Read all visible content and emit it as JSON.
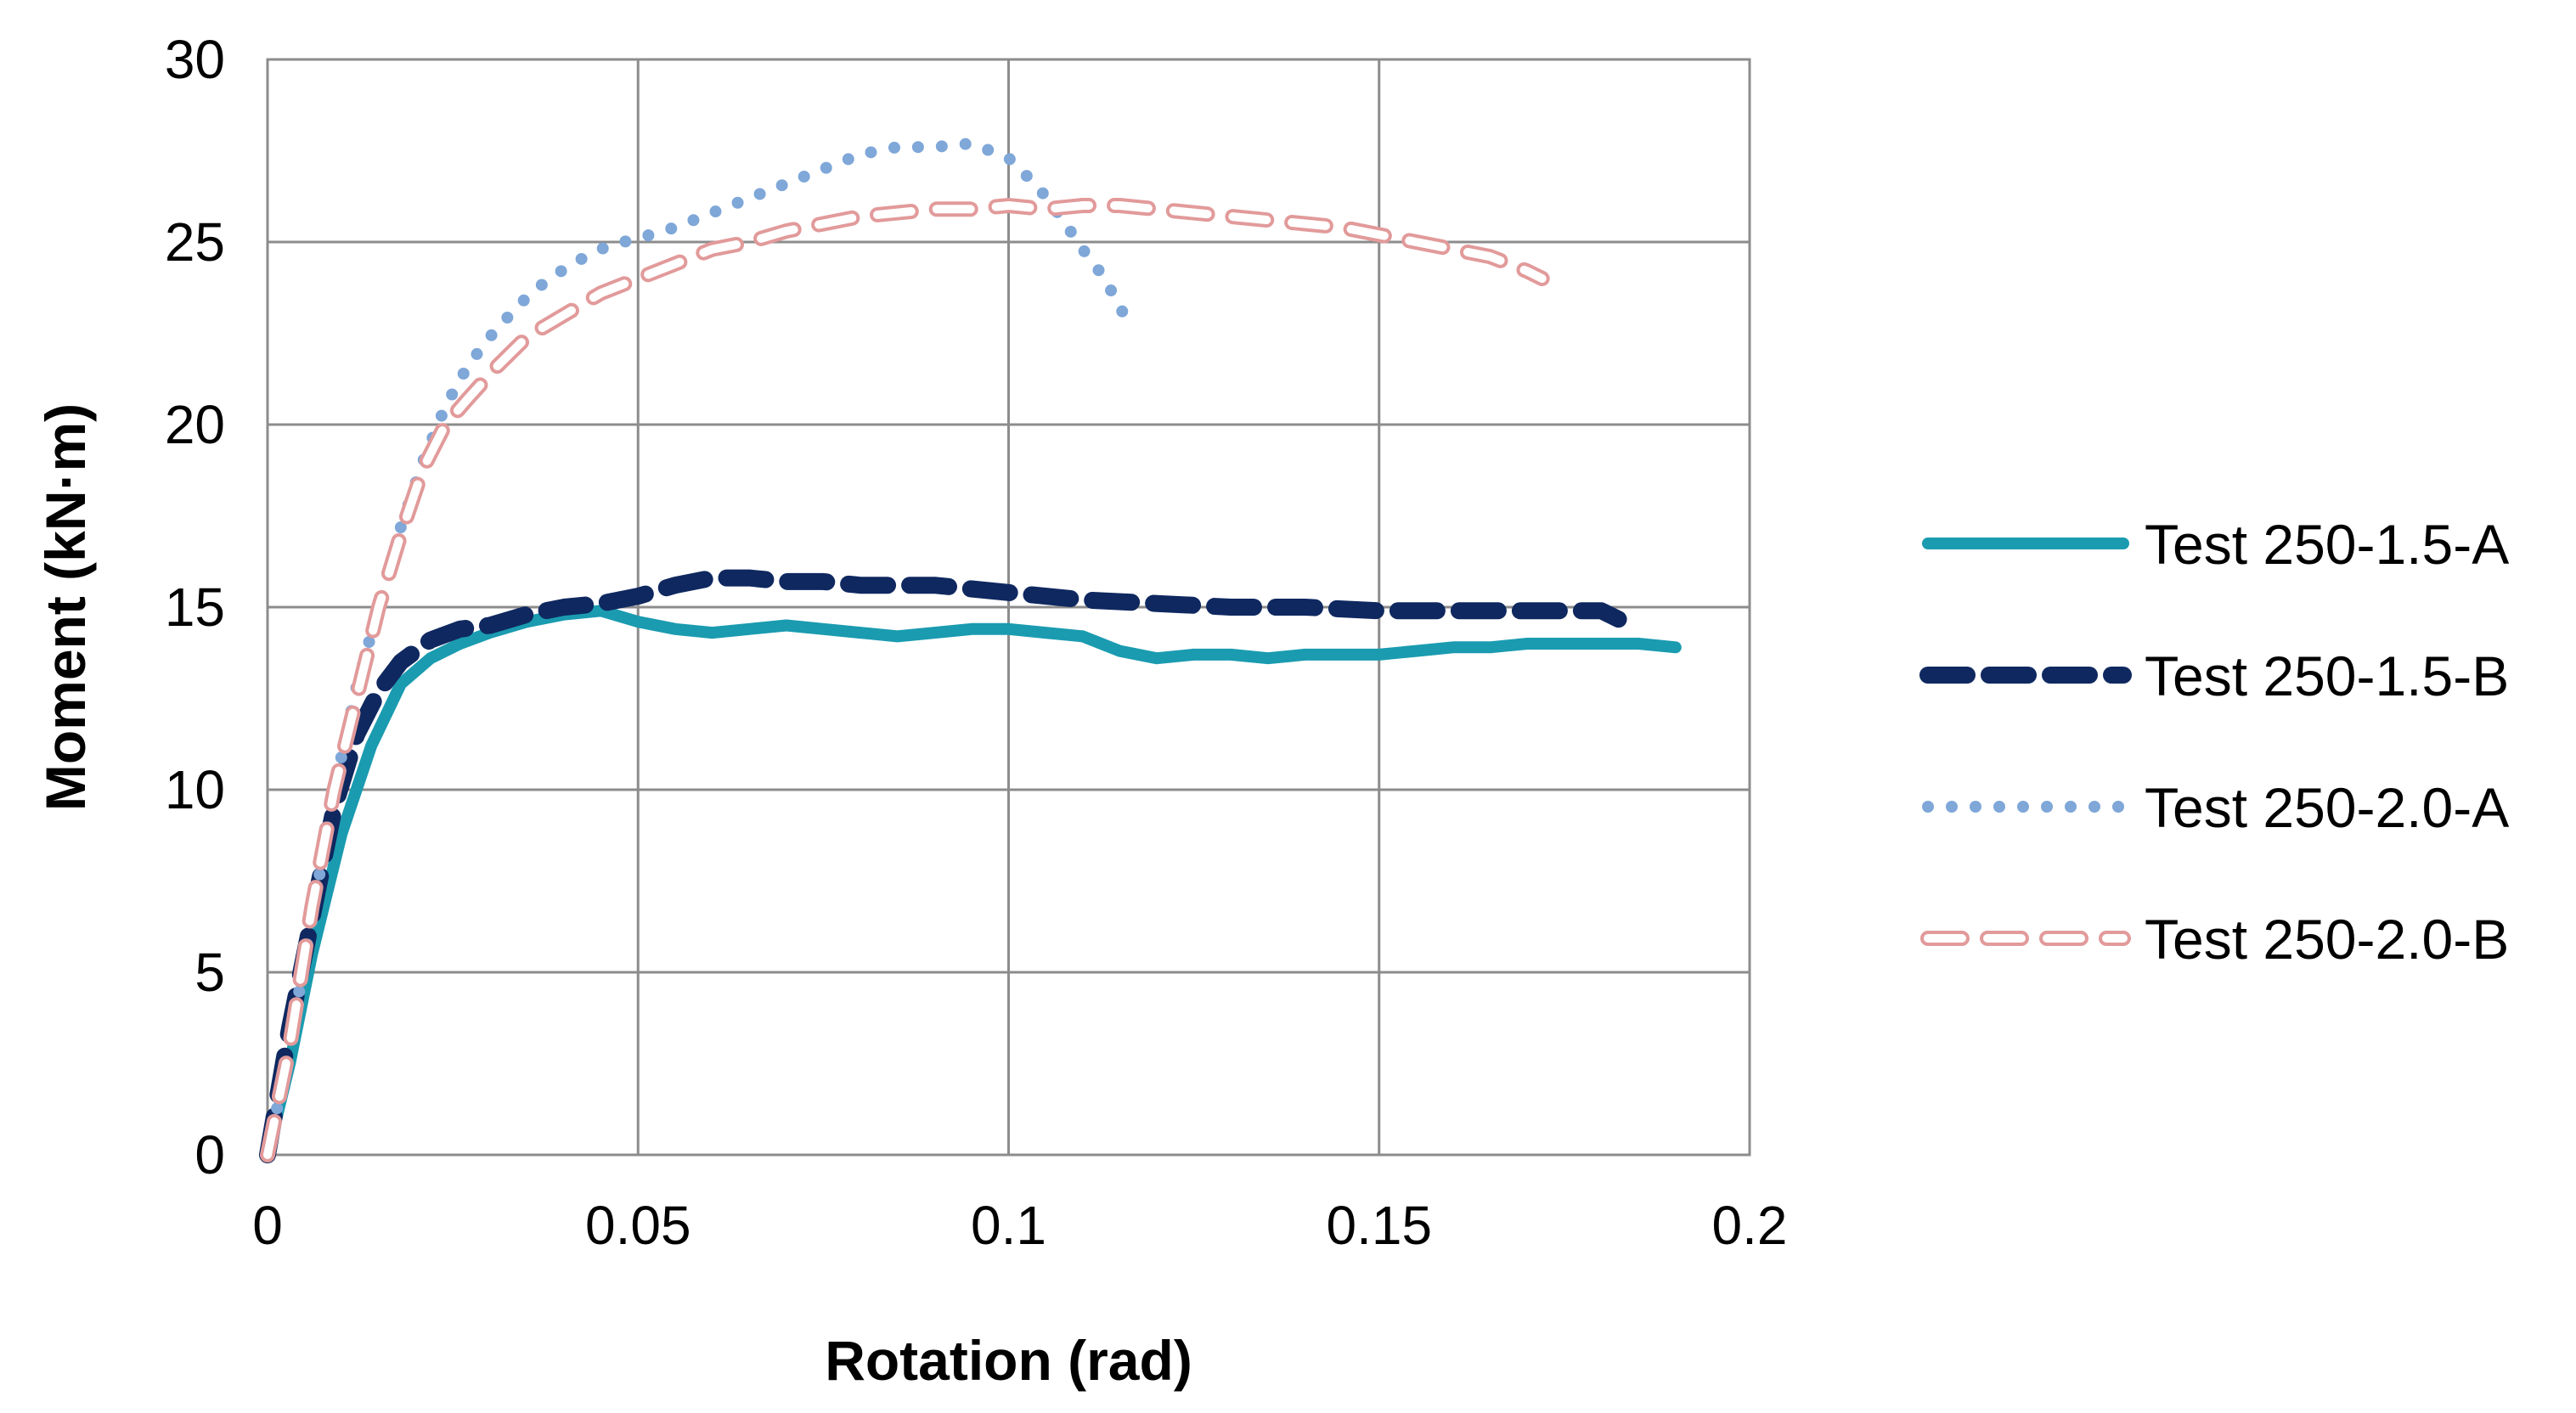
{
  "chart_data": {
    "type": "line",
    "title": "",
    "xlabel": "Rotation (rad)",
    "ylabel": "Moment (kN·m)",
    "xlim": [
      0,
      0.2
    ],
    "ylim": [
      0,
      30
    ],
    "xticks": [
      0,
      0.05,
      0.1,
      0.15,
      0.2
    ],
    "xtick_labels": [
      "0",
      "0.05",
      "0.1",
      "0.15",
      "0.2"
    ],
    "yticks": [
      0,
      5,
      10,
      15,
      20,
      25,
      30
    ],
    "ytick_labels": [
      "0",
      "5",
      "10",
      "15",
      "20",
      "25",
      "30"
    ],
    "grid": true,
    "legend_position": "right",
    "series": [
      {
        "name": "Test 250-1.5-A",
        "color": "#1a9bb0",
        "style": "solid",
        "x": [
          0,
          0.003,
          0.006,
          0.01,
          0.014,
          0.018,
          0.022,
          0.026,
          0.03,
          0.035,
          0.04,
          0.045,
          0.05,
          0.055,
          0.06,
          0.065,
          0.07,
          0.075,
          0.08,
          0.085,
          0.09,
          0.095,
          0.1,
          0.105,
          0.11,
          0.115,
          0.12,
          0.125,
          0.13,
          0.135,
          0.14,
          0.145,
          0.15,
          0.155,
          0.16,
          0.165,
          0.17,
          0.175,
          0.18,
          0.185,
          0.19
        ],
        "y": [
          0,
          2.5,
          5.5,
          8.8,
          11.2,
          12.9,
          13.6,
          14.0,
          14.3,
          14.6,
          14.8,
          14.9,
          14.6,
          14.4,
          14.3,
          14.4,
          14.5,
          14.4,
          14.3,
          14.2,
          14.3,
          14.4,
          14.4,
          14.3,
          14.2,
          13.8,
          13.6,
          13.7,
          13.7,
          13.6,
          13.7,
          13.7,
          13.7,
          13.8,
          13.9,
          13.9,
          14.0,
          14.0,
          14.0,
          14.0,
          13.9
        ]
      },
      {
        "name": "Test 250-1.5-B",
        "color": "#0f2860",
        "style": "dashed",
        "x": [
          0,
          0.003,
          0.006,
          0.009,
          0.012,
          0.015,
          0.018,
          0.022,
          0.026,
          0.03,
          0.035,
          0.04,
          0.045,
          0.05,
          0.055,
          0.06,
          0.065,
          0.07,
          0.075,
          0.08,
          0.085,
          0.09,
          0.095,
          0.1,
          0.105,
          0.11,
          0.12,
          0.13,
          0.14,
          0.15,
          0.16,
          0.17,
          0.175,
          0.18,
          0.183
        ],
        "y": [
          0,
          3.5,
          6.5,
          9.5,
          11.5,
          12.7,
          13.5,
          14.1,
          14.4,
          14.5,
          14.8,
          15.0,
          15.1,
          15.3,
          15.6,
          15.8,
          15.8,
          15.7,
          15.7,
          15.6,
          15.6,
          15.6,
          15.5,
          15.4,
          15.3,
          15.2,
          15.1,
          15.0,
          15.0,
          14.9,
          14.9,
          14.9,
          14.9,
          14.9,
          14.6
        ]
      },
      {
        "name": "Test 250-2.0-A",
        "color": "#7fa7d8",
        "style": "dotted",
        "x": [
          0,
          0.003,
          0.006,
          0.009,
          0.012,
          0.015,
          0.018,
          0.021,
          0.024,
          0.027,
          0.03,
          0.034,
          0.038,
          0.042,
          0.046,
          0.05,
          0.055,
          0.06,
          0.065,
          0.07,
          0.075,
          0.08,
          0.085,
          0.09,
          0.095,
          0.1,
          0.104,
          0.107,
          0.11,
          0.113,
          0.115,
          0.117
        ],
        "y": [
          0,
          3.0,
          6.5,
          10.0,
          12.8,
          15.0,
          17.2,
          19.0,
          20.5,
          21.6,
          22.4,
          23.3,
          24.0,
          24.5,
          24.9,
          25.1,
          25.4,
          25.8,
          26.2,
          26.6,
          27.0,
          27.4,
          27.6,
          27.6,
          27.7,
          27.3,
          26.5,
          25.7,
          24.8,
          24.0,
          23.2,
          22.6
        ]
      },
      {
        "name": "Test 250-2.0-B",
        "color": "#e29a9a",
        "style": "hollow-dash",
        "x": [
          0,
          0.003,
          0.006,
          0.009,
          0.012,
          0.015,
          0.018,
          0.021,
          0.024,
          0.027,
          0.031,
          0.035,
          0.04,
          0.045,
          0.05,
          0.055,
          0.06,
          0.065,
          0.07,
          0.075,
          0.08,
          0.085,
          0.09,
          0.095,
          0.1,
          0.105,
          0.11,
          0.115,
          0.12,
          0.125,
          0.13,
          0.135,
          0.14,
          0.145,
          0.15,
          0.155,
          0.16,
          0.165,
          0.17,
          0.172
        ],
        "y": [
          0,
          3.0,
          6.8,
          10.0,
          12.5,
          15.0,
          17.0,
          18.8,
          20.0,
          20.7,
          21.6,
          22.4,
          23.0,
          23.6,
          24.0,
          24.4,
          24.8,
          25.0,
          25.3,
          25.5,
          25.7,
          25.8,
          25.9,
          25.9,
          26.0,
          25.9,
          26.0,
          26.0,
          25.9,
          25.8,
          25.7,
          25.6,
          25.5,
          25.4,
          25.2,
          25.0,
          24.8,
          24.6,
          24.2,
          24.0
        ]
      }
    ]
  }
}
